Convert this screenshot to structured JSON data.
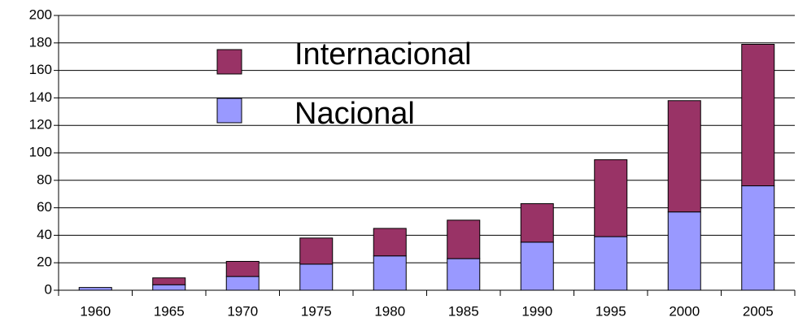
{
  "chart_data": {
    "type": "stacked_bar",
    "categories": [
      "1960",
      "1965",
      "1970",
      "1975",
      "1980",
      "1985",
      "1990",
      "1995",
      "2000",
      "2005"
    ],
    "series": [
      {
        "name": "Nacional",
        "color": "#9999ff",
        "values": [
          2,
          4,
          10,
          19,
          25,
          23,
          35,
          39,
          57,
          76
        ]
      },
      {
        "name": "Internacional",
        "color": "#993366",
        "values": [
          0,
          5,
          11,
          19,
          20,
          28,
          28,
          56,
          81,
          103
        ]
      }
    ],
    "ylim": [
      0,
      200
    ],
    "yticks": [
      0,
      20,
      40,
      60,
      80,
      100,
      120,
      140,
      160,
      180,
      200
    ],
    "grid": true
  }
}
